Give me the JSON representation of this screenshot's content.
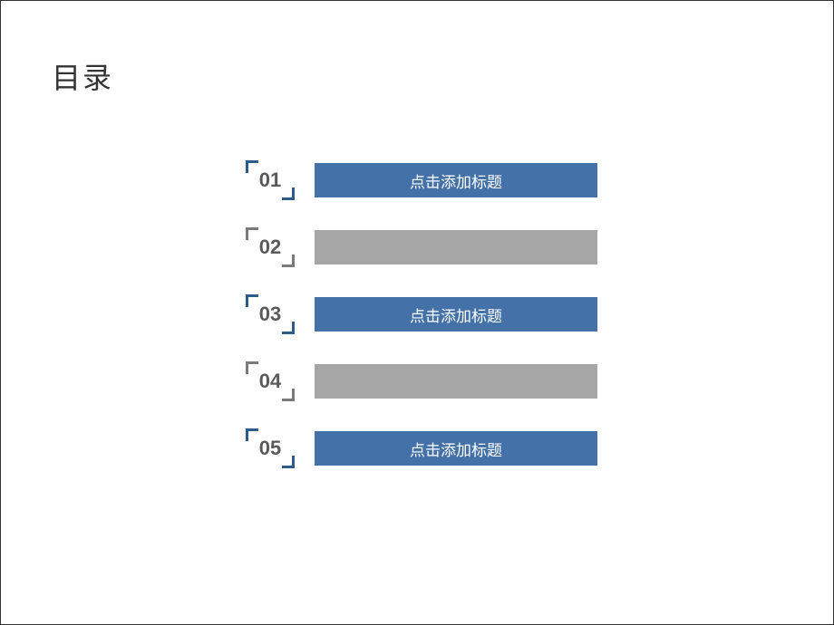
{
  "title": "目录",
  "colors": {
    "blue": "#4472a8",
    "gray": "#a6a6a6",
    "bracket_blue": "#2e5c8a",
    "bracket_gray": "#7a7a7a"
  },
  "items": [
    {
      "num": "01",
      "label": "点击添加标题",
      "bar_color": "#4472a8",
      "bracket_color": "#2e5c8a",
      "has_label": true
    },
    {
      "num": "02",
      "label": "",
      "bar_color": "#a6a6a6",
      "bracket_color": "#7a7a7a",
      "has_label": false
    },
    {
      "num": "03",
      "label": "点击添加标题",
      "bar_color": "#4472a8",
      "bracket_color": "#2e5c8a",
      "has_label": true
    },
    {
      "num": "04",
      "label": "",
      "bar_color": "#a6a6a6",
      "bracket_color": "#7a7a7a",
      "has_label": false
    },
    {
      "num": "05",
      "label": "点击添加标题",
      "bar_color": "#4472a8",
      "bracket_color": "#2e5c8a",
      "has_label": true
    }
  ]
}
